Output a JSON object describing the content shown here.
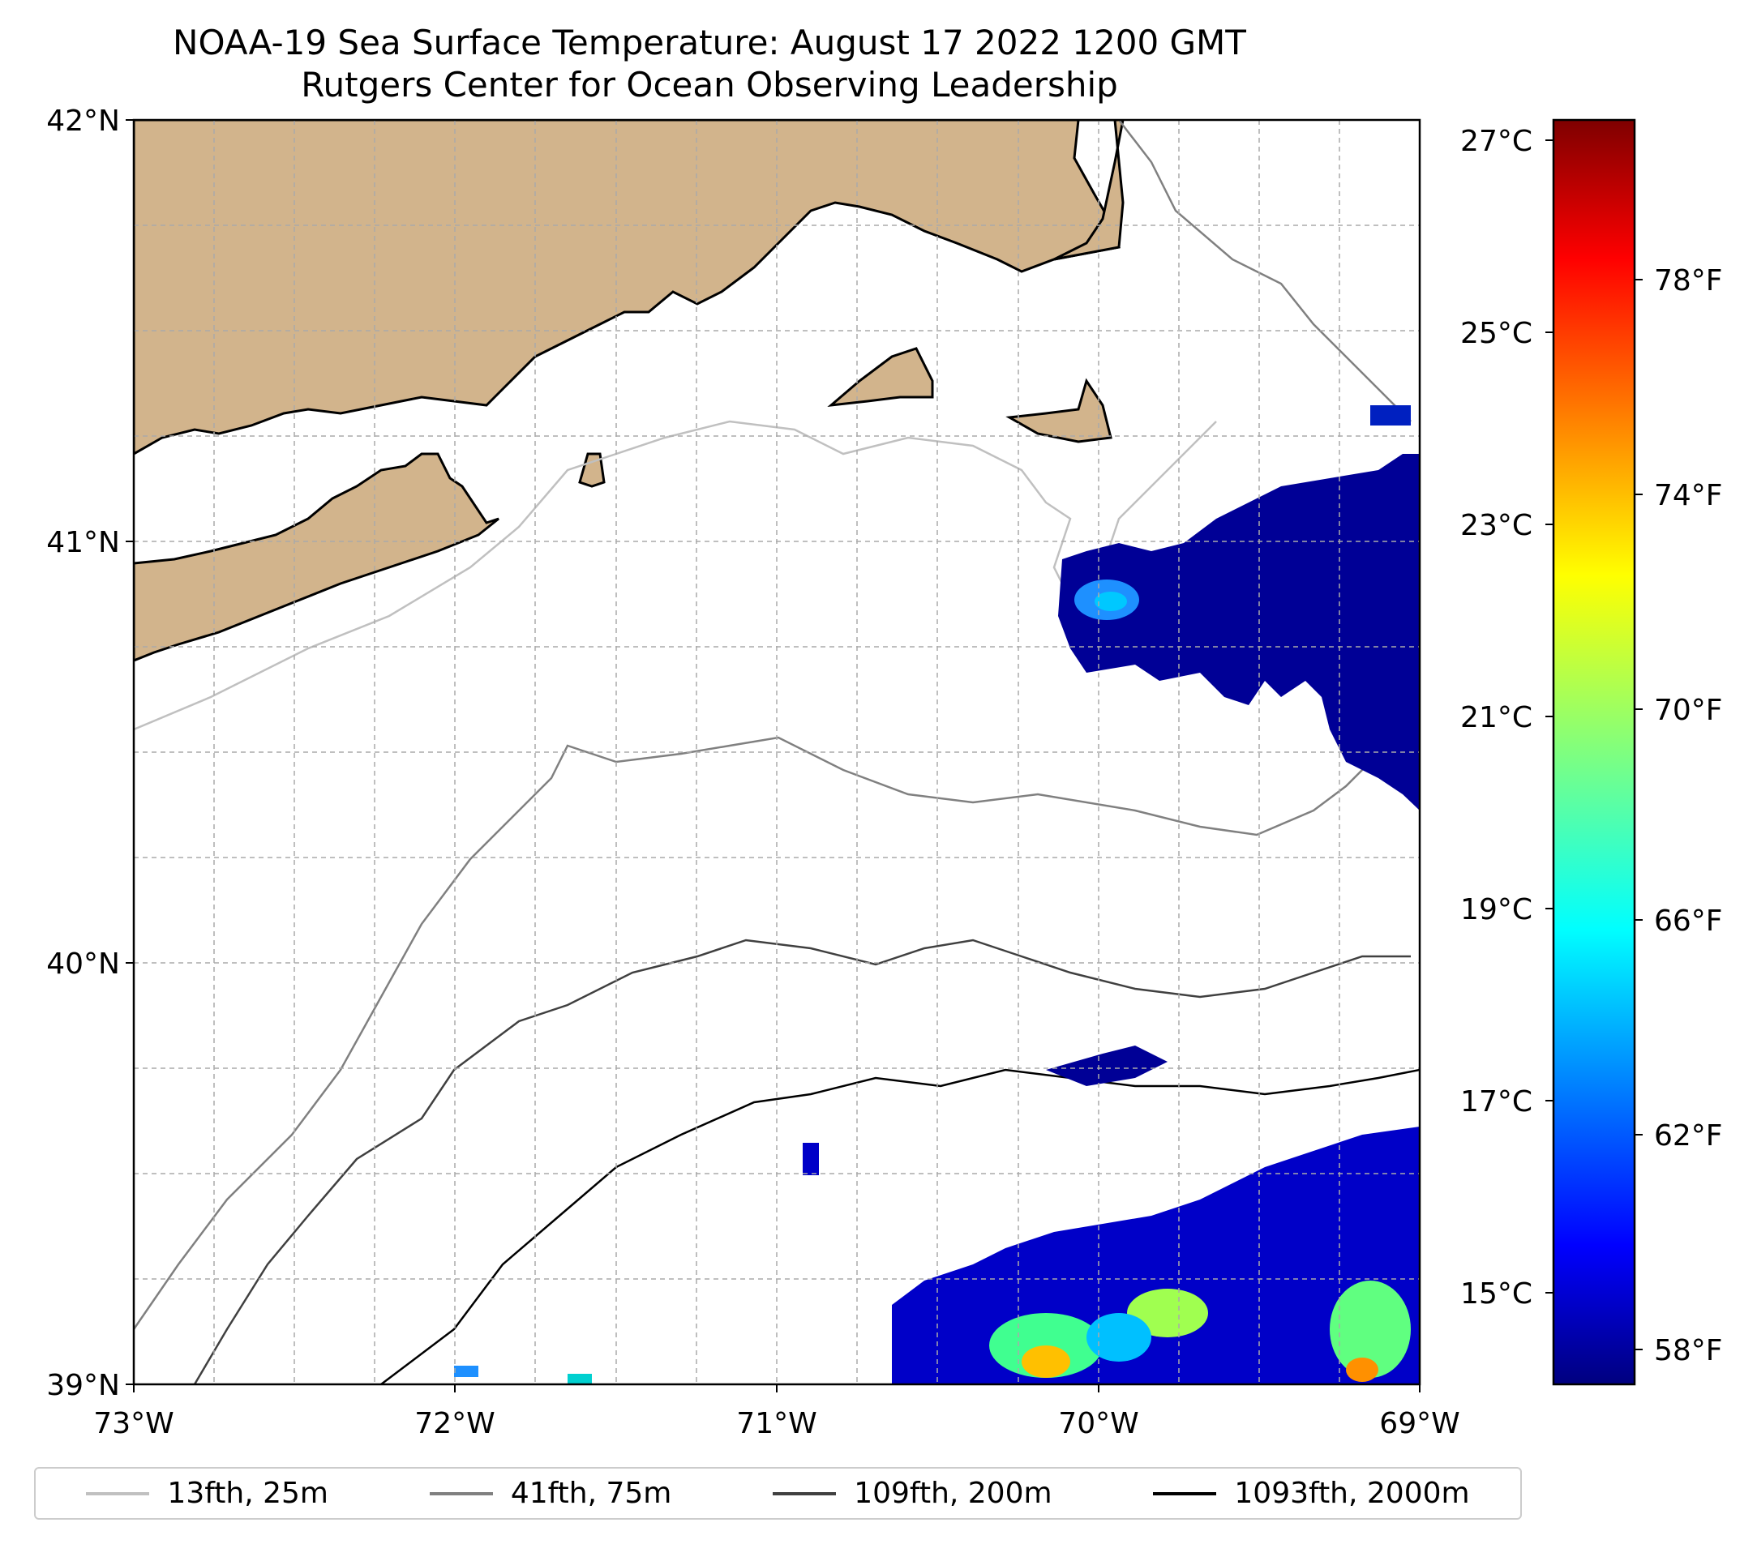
{
  "title": {
    "line1": "NOAA-19 Sea Surface Temperature: August 17 2022 1200 GMT",
    "line2": "Rutgers Center for Ocean Observing Leadership"
  },
  "map": {
    "lon_range": [
      -73,
      -69
    ],
    "lat_range": [
      39,
      42
    ],
    "lon_ticks": [
      "73°W",
      "72°W",
      "71°W",
      "70°W",
      "69°W"
    ],
    "lat_ticks": [
      "42°N",
      "41°N",
      "40°N",
      "39°N"
    ],
    "grid": true,
    "land_color": "#d2b48c",
    "ocean_color": "#ffffff"
  },
  "colorbar": {
    "celsius_ticks": [
      "27°C",
      "25°C",
      "23°C",
      "21°C",
      "19°C",
      "17°C",
      "15°C"
    ],
    "fahrenheit_ticks": [
      "78°F",
      "74°F",
      "70°F",
      "66°F",
      "62°F",
      "58°F"
    ],
    "range_f": [
      57,
      81
    ],
    "colormap": "jet"
  },
  "legend": {
    "items": [
      {
        "label": "13fth, 25m",
        "color": "#c0c0c0"
      },
      {
        "label": "41fth, 75m",
        "color": "#808080"
      },
      {
        "label": "109fth, 200m",
        "color": "#404040"
      },
      {
        "label": "1093fth, 2000m",
        "color": "#000000"
      }
    ],
    "placement": "bottom"
  }
}
